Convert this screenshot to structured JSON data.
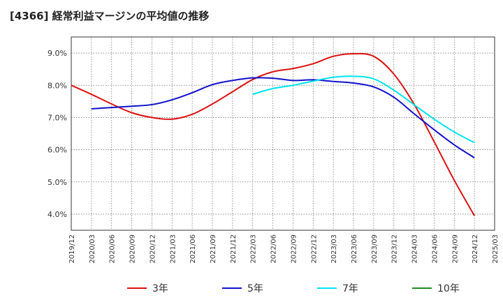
{
  "chart_data": {
    "type": "line",
    "title": "[4366]  経常利益マージンの平均値の推移",
    "xlabel": "",
    "ylabel": "",
    "ylim": [
      3.5,
      9.5
    ],
    "y_ticks": [
      "4.0%",
      "5.0%",
      "6.0%",
      "7.0%",
      "8.0%",
      "9.0%"
    ],
    "y_tick_values": [
      4.0,
      5.0,
      6.0,
      7.0,
      8.0,
      9.0
    ],
    "x_ticks": [
      "2019/12",
      "2020/03",
      "2020/06",
      "2020/09",
      "2020/12",
      "2021/03",
      "2021/06",
      "2021/09",
      "2021/12",
      "2022/03",
      "2022/06",
      "2022/09",
      "2022/12",
      "2023/03",
      "2023/06",
      "2023/09",
      "2023/12",
      "2024/03",
      "2024/06",
      "2024/09",
      "2024/12",
      "2025/03"
    ],
    "grid": true,
    "legend_position": "bottom",
    "series": [
      {
        "name": "3年",
        "color": "#dd1111",
        "x": [
          "2019/12",
          "2020/03",
          "2020/06",
          "2020/09",
          "2020/12",
          "2021/03",
          "2021/06",
          "2021/09",
          "2021/12",
          "2022/03",
          "2022/06",
          "2022/09",
          "2022/12",
          "2023/03",
          "2023/06",
          "2023/09",
          "2023/12",
          "2024/03",
          "2024/06",
          "2024/09",
          "2024/12"
        ],
        "values": [
          8.0,
          7.72,
          7.42,
          7.15,
          7.0,
          6.95,
          7.1,
          7.42,
          7.8,
          8.18,
          8.42,
          8.52,
          8.67,
          8.9,
          8.98,
          8.9,
          8.35,
          7.42,
          6.25,
          5.05,
          3.95
        ]
      },
      {
        "name": "5年",
        "color": "#1111cc",
        "x": [
          "2020/03",
          "2020/06",
          "2020/09",
          "2020/12",
          "2021/03",
          "2021/06",
          "2021/09",
          "2021/12",
          "2022/03",
          "2022/06",
          "2022/09",
          "2022/12",
          "2023/03",
          "2023/06",
          "2023/09",
          "2023/12",
          "2024/03",
          "2024/06",
          "2024/09",
          "2024/12"
        ],
        "values": [
          7.27,
          7.31,
          7.35,
          7.4,
          7.55,
          7.77,
          8.02,
          8.15,
          8.23,
          8.22,
          8.15,
          8.17,
          8.12,
          8.07,
          7.95,
          7.63,
          7.12,
          6.62,
          6.15,
          5.75
        ]
      },
      {
        "name": "7年",
        "color": "#00e5ee",
        "x": [
          "2022/03",
          "2022/06",
          "2022/09",
          "2022/12",
          "2023/03",
          "2023/06",
          "2023/09",
          "2023/12",
          "2024/03",
          "2024/06",
          "2024/09",
          "2024/12"
        ],
        "values": [
          7.72,
          7.9,
          8.0,
          8.13,
          8.25,
          8.28,
          8.2,
          7.85,
          7.4,
          6.95,
          6.55,
          6.22
        ]
      },
      {
        "name": "10年",
        "color": "#228822",
        "x": [],
        "values": []
      }
    ]
  }
}
